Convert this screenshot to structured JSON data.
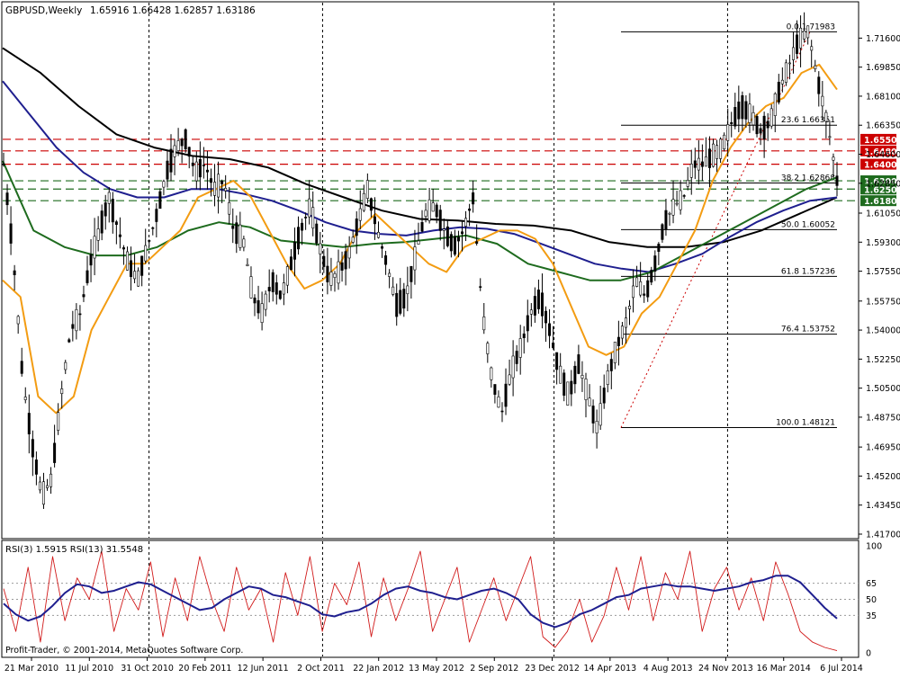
{
  "header": {
    "symbol": "GBPUSD,Weekly",
    "ohlc": "1.65916 1.66428 1.62857 1.63186"
  },
  "rsi_header": "RSI(3) 1.5915  RSI(13) 31.5548",
  "footer": "Profit-Trader, © 2001-2014, MetaQuotes Software Corp.",
  "colors": {
    "ema_fast": "#f39c12",
    "sma_blue": "#1f1f8f",
    "sma_green": "#1e6b1e",
    "sma_black": "#000000",
    "resistance": "#cc0000",
    "support": "#1e6b1e",
    "rsi_fast": "#d11a1a",
    "rsi_slow": "#1f1f8f",
    "fib": "#000000"
  },
  "chart_data": {
    "type": "candlestick",
    "symbol": "GBPUSD",
    "timeframe": "Weekly",
    "price_axis": {
      "min": 1.417,
      "max": 1.72,
      "ticks": [
        "1.71600",
        "1.69850",
        "1.68100",
        "1.66350",
        "1.64600",
        "1.62850",
        "1.61050",
        "1.59300",
        "1.57550",
        "1.55750",
        "1.54000",
        "1.52250",
        "1.50500",
        "1.48750",
        "1.46950",
        "1.45200",
        "1.43450",
        "1.41700"
      ]
    },
    "x_labels": [
      "21 Mar 2010",
      "11 Jul 2010",
      "31 Oct 2010",
      "20 Feb 2011",
      "12 Jun 2011",
      "2 Oct 2011",
      "22 Jan 2012",
      "13 May 2012",
      "2 Sep 2012",
      "23 Dec 2012",
      "14 Apr 2013",
      "4 Aug 2013",
      "24 Nov 2013",
      "16 Mar 2014",
      "6 Jul 2014"
    ],
    "horizontal_levels": [
      {
        "label": "1.65500",
        "value": 1.655,
        "style": "resistance"
      },
      {
        "label": "1.64800",
        "value": 1.648,
        "style": "resistance"
      },
      {
        "label": "1.64000",
        "value": 1.64,
        "style": "resistance"
      },
      {
        "label": "1.63000",
        "value": 1.63,
        "style": "support"
      },
      {
        "label": "1.62500",
        "value": 1.625,
        "style": "support"
      },
      {
        "label": "1.61800",
        "value": 1.618,
        "style": "support"
      }
    ],
    "current_price": "1.63186",
    "fibonacci": {
      "high": 1.71983,
      "low": 1.48121,
      "levels": [
        {
          "label": "0.0 1.71983",
          "value": 1.71983
        },
        {
          "label": "23.6 1.66351",
          "value": 1.66351
        },
        {
          "label": "38.2 1.62868",
          "value": 1.62868
        },
        {
          "label": "50.0 1.60052",
          "value": 1.60052
        },
        {
          "label": "61.8 1.57236",
          "value": 1.57236
        },
        {
          "label": "76.4 1.53752",
          "value": 1.53752
        },
        {
          "label": "100.0 1.48121",
          "value": 1.48121
        }
      ]
    },
    "price_path": [
      1.64,
      1.585,
      1.51,
      1.47,
      1.44,
      1.45,
      1.5,
      1.54,
      1.55,
      1.58,
      1.6,
      1.62,
      1.6,
      1.58,
      1.57,
      1.59,
      1.61,
      1.635,
      1.65,
      1.655,
      1.635,
      1.64,
      1.625,
      1.63,
      1.6,
      1.595,
      1.56,
      1.55,
      1.57,
      1.56,
      1.58,
      1.6,
      1.615,
      1.59,
      1.57,
      1.575,
      1.585,
      1.605,
      1.625,
      1.6,
      1.58,
      1.555,
      1.56,
      1.585,
      1.61,
      1.615,
      1.6,
      1.59,
      1.6,
      1.62,
      1.55,
      1.51,
      1.49,
      1.515,
      1.53,
      1.55,
      1.56,
      1.54,
      1.515,
      1.5,
      1.52,
      1.5,
      1.48,
      1.51,
      1.53,
      1.545,
      1.57,
      1.56,
      1.58,
      1.605,
      1.615,
      1.62,
      1.64,
      1.64,
      1.645,
      1.65,
      1.665,
      1.675,
      1.67,
      1.66,
      1.665,
      1.685,
      1.7,
      1.715,
      1.72,
      1.69,
      1.665,
      1.63
    ],
    "ma_fast": [
      1.57,
      1.56,
      1.5,
      1.49,
      1.5,
      1.54,
      1.56,
      1.58,
      1.58,
      1.59,
      1.6,
      1.62,
      1.625,
      1.63,
      1.62,
      1.6,
      1.58,
      1.565,
      1.57,
      1.58,
      1.6,
      1.61,
      1.6,
      1.59,
      1.58,
      1.575,
      1.59,
      1.595,
      1.6,
      1.6,
      1.595,
      1.58,
      1.555,
      1.53,
      1.525,
      1.53,
      1.55,
      1.56,
      1.58,
      1.6,
      1.63,
      1.65,
      1.665,
      1.675,
      1.68,
      1.695,
      1.7,
      1.685
    ],
    "ma_blue": [
      1.69,
      1.67,
      1.65,
      1.635,
      1.625,
      1.62,
      1.62,
      1.625,
      1.625,
      1.622,
      1.618,
      1.612,
      1.605,
      1.6,
      1.598,
      1.597,
      1.6,
      1.602,
      1.601,
      1.598,
      1.592,
      1.586,
      1.58,
      1.577,
      1.575,
      1.58,
      1.586,
      1.596,
      1.605,
      1.612,
      1.618,
      1.62
    ],
    "ma_green": [
      1.642,
      1.6,
      1.59,
      1.585,
      1.585,
      1.59,
      1.6,
      1.605,
      1.602,
      1.594,
      1.592,
      1.59,
      1.592,
      1.593,
      1.595,
      1.597,
      1.592,
      1.58,
      1.575,
      1.57,
      1.57,
      1.575,
      1.585,
      1.595,
      1.605,
      1.615,
      1.625,
      1.632
    ],
    "ma_black": [
      1.71,
      1.695,
      1.675,
      1.658,
      1.65,
      1.645,
      1.643,
      1.638,
      1.628,
      1.62,
      1.612,
      1.607,
      1.606,
      1.604,
      1.603,
      1.6,
      1.593,
      1.59,
      1.59,
      1.593,
      1.6,
      1.61,
      1.62
    ],
    "fib_trendline": {
      "from": 1.48121,
      "to": 1.71983
    },
    "rsi": {
      "title": "RSI(3) 1.5915  RSI(13) 31.5548",
      "scale": [
        0,
        100
      ],
      "levels": [
        "100",
        "65",
        "50",
        "35",
        "0"
      ],
      "rsi3_last": 1.5915,
      "rsi13_last": 31.5548,
      "rsi13": [
        46,
        36,
        30,
        34,
        44,
        56,
        64,
        62,
        56,
        58,
        62,
        66,
        64,
        58,
        52,
        46,
        40,
        42,
        50,
        56,
        62,
        60,
        54,
        52,
        48,
        44,
        36,
        34,
        38,
        40,
        46,
        54,
        60,
        62,
        58,
        56,
        52,
        50,
        54,
        58,
        60,
        56,
        50,
        36,
        28,
        24,
        28,
        36,
        40,
        46,
        52,
        54,
        60,
        62,
        64,
        62,
        62,
        60,
        58,
        60,
        62,
        66,
        68,
        72,
        72,
        66,
        54,
        42,
        32
      ],
      "rsi3": [
        60,
        20,
        80,
        10,
        90,
        30,
        70,
        50,
        95,
        20,
        60,
        40,
        85,
        15,
        70,
        30,
        90,
        50,
        20,
        80,
        40,
        60,
        10,
        75,
        35,
        90,
        20,
        65,
        45,
        85,
        15,
        70,
        30,
        60,
        95,
        20,
        50,
        80,
        10,
        40,
        70,
        30,
        60,
        90,
        15,
        5,
        20,
        50,
        10,
        35,
        80,
        40,
        90,
        30,
        75,
        50,
        95,
        20,
        60,
        80,
        40,
        70,
        30,
        85,
        55,
        20,
        10,
        5,
        2
      ]
    }
  }
}
